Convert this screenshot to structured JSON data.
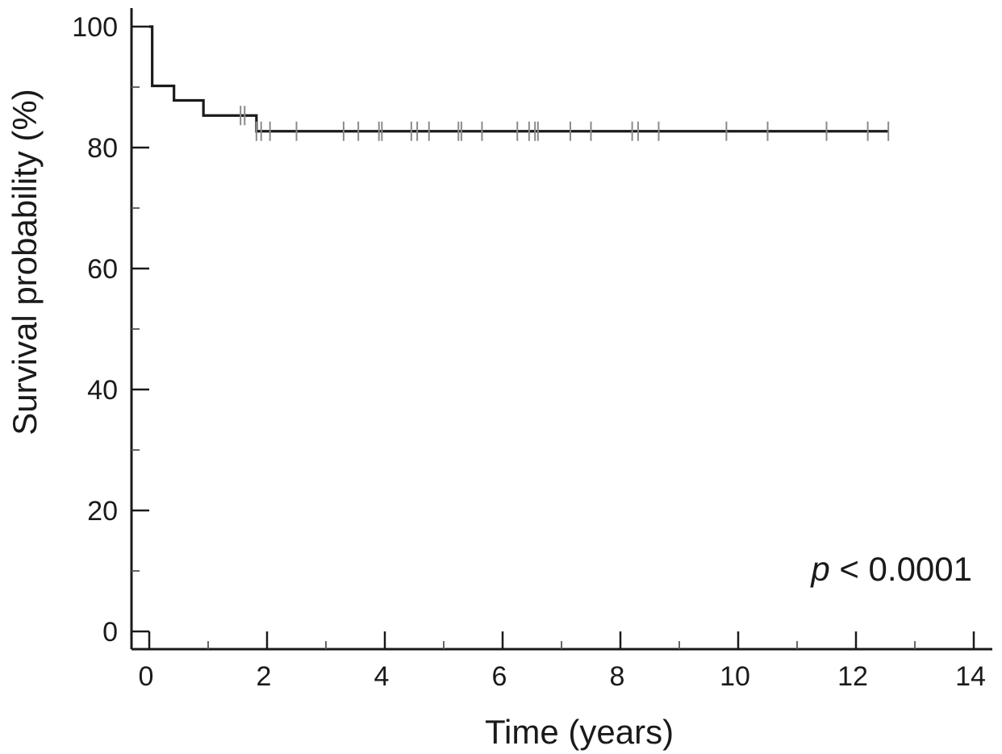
{
  "chart_data": {
    "type": "line",
    "subtype": "kaplan-meier-step",
    "title": "",
    "xlabel": "Time (years)",
    "ylabel": "Survival probability (%)",
    "xlim": [
      0,
      14
    ],
    "ylim": [
      0,
      100
    ],
    "x_ticks": [
      0,
      2,
      4,
      6,
      8,
      10,
      12,
      14
    ],
    "x_tick_labels": [
      "0",
      "2",
      "4",
      "6",
      "8",
      "10",
      "12",
      "14"
    ],
    "y_ticks": [
      0,
      20,
      40,
      60,
      80,
      100
    ],
    "y_tick_labels": [
      "0",
      "20",
      "40",
      "60",
      "80",
      "100"
    ],
    "grid": false,
    "series": [
      {
        "steps": [
          {
            "x": 0,
            "y": 100
          },
          {
            "x": 0.05,
            "y": 90.2
          },
          {
            "x": 0.42,
            "y": 87.8
          },
          {
            "x": 0.92,
            "y": 85.3
          },
          {
            "x": 1.82,
            "y": 82.7
          },
          {
            "x": 12.55,
            "y": 82.7
          }
        ],
        "censor_times": [
          1.55,
          1.62,
          1.82,
          1.9,
          2.05,
          2.5,
          3.3,
          3.55,
          3.9,
          3.95,
          4.45,
          4.55,
          4.75,
          5.25,
          5.3,
          5.65,
          6.25,
          6.45,
          6.55,
          6.6,
          7.15,
          7.5,
          8.2,
          8.3,
          8.65,
          9.8,
          10.5,
          11.5,
          12.2,
          12.55
        ]
      }
    ],
    "annotations": [
      {
        "text": "p < 0.0001",
        "position": "bottom-right"
      }
    ]
  }
}
